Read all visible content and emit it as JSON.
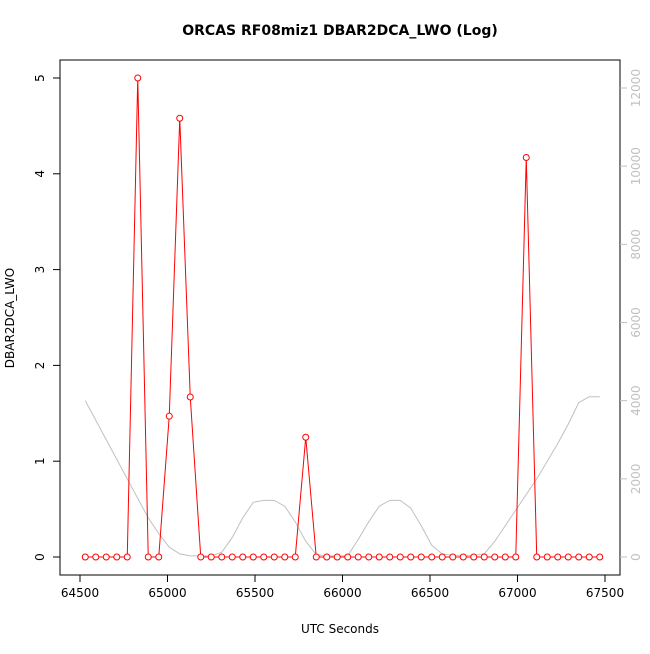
{
  "chart_data": {
    "type": "line",
    "title": "ORCAS RF08miz1 DBAR2DCA_LWO (Log)",
    "xlabel": "UTC Seconds",
    "ylabel": "DBAR2DCA_LWO",
    "xlim": [
      64500,
      67500
    ],
    "ylim": [
      0,
      5
    ],
    "y2lim": [
      0,
      12000
    ],
    "x_ticks": [
      64500,
      65000,
      65500,
      66000,
      66500,
      67000,
      67500
    ],
    "x_tick_labels": [
      "64500",
      "65000",
      "65500",
      "66000",
      "66500",
      "67000",
      "67500"
    ],
    "y_ticks": [
      0,
      1,
      2,
      3,
      4,
      5
    ],
    "y_tick_labels": [
      "0",
      "1",
      "2",
      "3",
      "4",
      "5"
    ],
    "y2_ticks": [
      0,
      2000,
      4000,
      6000,
      8000,
      10000,
      12000
    ],
    "y2_tick_labels": [
      "0",
      "2000",
      "4000",
      "6000",
      "8000",
      "10000",
      "12000"
    ],
    "grid": false,
    "series": [
      {
        "color": "#ff0000",
        "axis": "left",
        "style": "line+circle-markers",
        "x": [
          64530,
          64590,
          64650,
          64710,
          64770,
          64830,
          64890,
          64950,
          65010,
          65070,
          65130,
          65190,
          65250,
          65310,
          65370,
          65430,
          65490,
          65550,
          65610,
          65670,
          65730,
          65790,
          65850,
          65910,
          65970,
          66030,
          66090,
          66150,
          66210,
          66270,
          66330,
          66390,
          66450,
          66510,
          66570,
          66630,
          66690,
          66750,
          66810,
          66870,
          66930,
          66990,
          67050,
          67110,
          67170,
          67230,
          67290,
          67350,
          67410,
          67470
        ],
        "values": [
          0,
          0,
          0,
          0,
          0,
          5.0,
          0,
          0,
          1.47,
          4.58,
          1.67,
          0,
          0,
          0,
          0,
          0,
          0,
          0,
          0,
          0,
          0,
          1.25,
          0,
          0,
          0,
          0,
          0,
          0,
          0,
          0,
          0,
          0,
          0,
          0,
          0,
          0,
          0,
          0,
          0,
          0,
          0,
          0,
          4.17,
          0,
          0,
          0,
          0,
          0,
          0,
          0
        ]
      },
      {
        "color": "#c0c0c0",
        "axis": "right",
        "style": "line",
        "x": [
          64530,
          64650,
          64770,
          64890,
          64950,
          65010,
          65070,
          65130,
          65250,
          65310,
          65370,
          65430,
          65490,
          65550,
          65610,
          65670,
          65730,
          65790,
          65850,
          65910,
          65970,
          66030,
          66090,
          66150,
          66210,
          66270,
          66330,
          66390,
          66450,
          66510,
          66570,
          66630,
          66690,
          66750,
          66810,
          66870,
          66930,
          66990,
          67050,
          67110,
          67170,
          67230,
          67290,
          67350,
          67410,
          67470
        ],
        "values": [
          4000,
          3000,
          2000,
          1000,
          600,
          250,
          80,
          30,
          30,
          120,
          500,
          1000,
          1400,
          1450,
          1450,
          1300,
          900,
          400,
          60,
          30,
          30,
          30,
          450,
          900,
          1300,
          1450,
          1450,
          1250,
          800,
          300,
          80,
          40,
          40,
          40,
          80,
          400,
          800,
          1200,
          1600,
          2000,
          2450,
          2900,
          3400,
          3950,
          4100,
          4100
        ]
      }
    ]
  }
}
